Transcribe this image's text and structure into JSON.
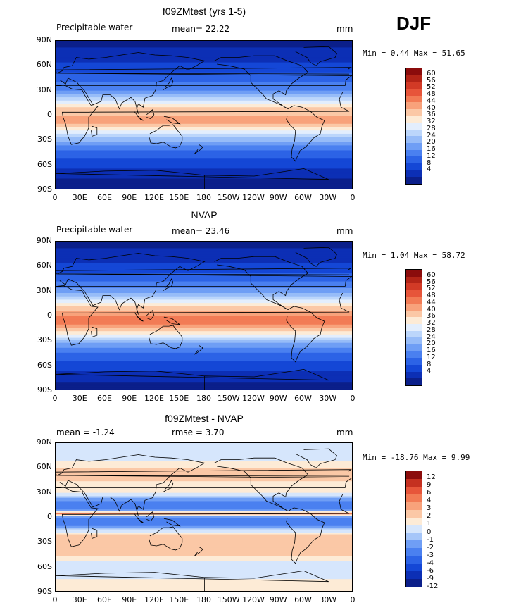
{
  "season": "DJF",
  "lon_labels": [
    "0",
    "30E",
    "60E",
    "90E",
    "120E",
    "150E",
    "180",
    "150W",
    "120W",
    "90W",
    "60W",
    "30W",
    "0"
  ],
  "lat_labels": [
    "90N",
    "60N",
    "30N",
    "0",
    "30S",
    "60S",
    "90S"
  ],
  "palette_pw": [
    "#0b1f8a",
    "#0c2fb5",
    "#1447d6",
    "#2c63e6",
    "#4a80f0",
    "#6f9ef5",
    "#97bcf8",
    "#bcd6fb",
    "#e3eefd",
    "#fdebd6",
    "#fbc8a6",
    "#f8a27b",
    "#f27b55",
    "#e7553a",
    "#d23a26",
    "#b32417",
    "#8b0c0c"
  ],
  "palette_diff": [
    "#0b1f8a",
    "#0c2fb5",
    "#1447d6",
    "#2c63e6",
    "#4a80f0",
    "#6f9ef5",
    "#a6c6f9",
    "#d6e6fc",
    "#fdebd6",
    "#fbc8a6",
    "#f8a27b",
    "#f27b55",
    "#e7553a",
    "#c53020",
    "#8b0c0c"
  ],
  "panels": [
    {
      "title": "f09ZMtest (yrs 1-5)",
      "left_label": "Precipitable water",
      "center_label": "mean=   22.22",
      "units": "mm",
      "stats": "Min =   0.44 Max =  51.65",
      "colorbar_labels": [
        "60",
        "56",
        "52",
        "48",
        "44",
        "40",
        "36",
        "32",
        "28",
        "24",
        "20",
        "16",
        "12",
        "8",
        "4"
      ]
    },
    {
      "title": "NVAP",
      "left_label": "Precipitable water",
      "center_label": "mean=   23.46",
      "units": "mm",
      "stats": "Min =   1.04 Max =  58.72",
      "colorbar_labels": [
        "60",
        "56",
        "52",
        "48",
        "44",
        "40",
        "36",
        "32",
        "28",
        "24",
        "20",
        "16",
        "12",
        "8",
        "4"
      ]
    },
    {
      "title": "f09ZMtest - NVAP",
      "left_label": "mean =  -1.24",
      "center_label": "rmse =    3.70",
      "units": "mm",
      "stats": "Min = -18.76 Max =   9.99",
      "colorbar_labels": [
        "12",
        "9",
        "6",
        "4",
        "3",
        "2",
        "1",
        "0",
        "-1",
        "-2",
        "-3",
        "-4",
        "-6",
        "-9",
        "-12"
      ]
    }
  ],
  "chart_data": [
    {
      "type": "heatmap",
      "title": "f09ZMtest (yrs 1-5)",
      "field": "Precipitable water",
      "units": "mm",
      "mean": 22.22,
      "min": 0.44,
      "max": 51.65,
      "contour_levels": [
        4,
        8,
        12,
        16,
        20,
        24,
        28,
        32,
        36,
        40,
        44,
        48,
        52,
        56,
        60
      ],
      "x_range": [
        0,
        360
      ],
      "y_range": [
        -90,
        90
      ],
      "zonal_profile": [
        [
          90,
          3
        ],
        [
          75,
          5
        ],
        [
          60,
          9
        ],
        [
          45,
          14
        ],
        [
          30,
          20
        ],
        [
          20,
          30
        ],
        [
          10,
          40
        ],
        [
          0,
          44
        ],
        [
          -10,
          44
        ],
        [
          -20,
          34
        ],
        [
          -30,
          25
        ],
        [
          -45,
          14
        ],
        [
          -60,
          9
        ],
        [
          -75,
          4
        ],
        [
          -90,
          2
        ]
      ]
    },
    {
      "type": "heatmap",
      "title": "NVAP",
      "field": "Precipitable water",
      "units": "mm",
      "mean": 23.46,
      "min": 1.04,
      "max": 58.72,
      "contour_levels": [
        4,
        8,
        12,
        16,
        20,
        24,
        28,
        32,
        36,
        40,
        44,
        48,
        52,
        56,
        60
      ],
      "x_range": [
        0,
        360
      ],
      "y_range": [
        -90,
        90
      ],
      "zonal_profile": [
        [
          90,
          3
        ],
        [
          75,
          5
        ],
        [
          60,
          9
        ],
        [
          45,
          15
        ],
        [
          30,
          22
        ],
        [
          20,
          32
        ],
        [
          10,
          42
        ],
        [
          0,
          48
        ],
        [
          -10,
          48
        ],
        [
          -20,
          38
        ],
        [
          -30,
          26
        ],
        [
          -45,
          15
        ],
        [
          -60,
          10
        ],
        [
          -75,
          5
        ],
        [
          -90,
          2
        ]
      ]
    },
    {
      "type": "heatmap",
      "title": "f09ZMtest - NVAP",
      "units": "mm",
      "mean": -1.24,
      "rmse": 3.7,
      "min": -18.76,
      "max": 9.99,
      "contour_levels": [
        -12,
        -9,
        -6,
        -4,
        -3,
        -2,
        -1,
        0,
        1,
        2,
        3,
        4,
        6,
        9,
        12
      ],
      "x_range": [
        0,
        360
      ],
      "y_range": [
        -90,
        90
      ],
      "zonal_profile": [
        [
          90,
          0
        ],
        [
          75,
          -1
        ],
        [
          60,
          1
        ],
        [
          45,
          1
        ],
        [
          30,
          0
        ],
        [
          20,
          -3
        ],
        [
          10,
          -4
        ],
        [
          5,
          3
        ],
        [
          0,
          -4
        ],
        [
          -10,
          -3
        ],
        [
          -20,
          1
        ],
        [
          -30,
          1
        ],
        [
          -45,
          1
        ],
        [
          -60,
          -1
        ],
        [
          -75,
          0
        ],
        [
          -90,
          0
        ]
      ]
    }
  ]
}
